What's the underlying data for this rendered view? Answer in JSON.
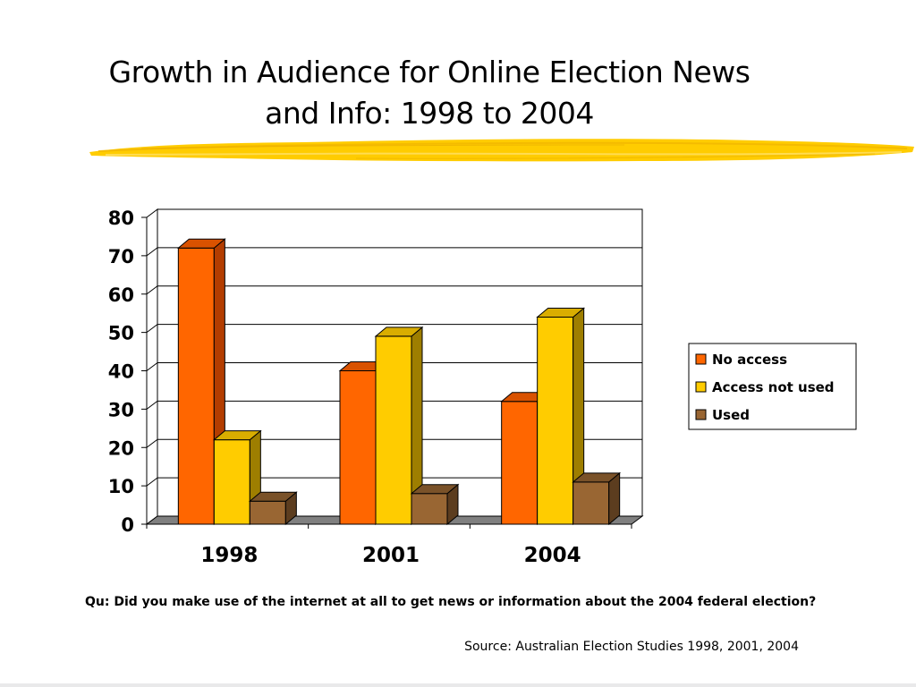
{
  "slide": {
    "title_line1": "Growth in Audience for Online Election News",
    "title_line2": "and Info: 1998 to 2004",
    "question": "Qu: Did you make use of the internet at all to get news or information about the 2004 federal election?",
    "source": "Source: Australian Election Studies 1998, 2001, 2004",
    "accent_color": "#ffcc00"
  },
  "chart_data": {
    "type": "bar",
    "title": "",
    "xlabel": "",
    "ylabel": "",
    "categories": [
      "1998",
      "2001",
      "2004"
    ],
    "series": [
      {
        "name": "No access",
        "values": [
          72,
          40,
          32
        ],
        "color": "#ff6600",
        "side": "#b33d00",
        "top": "#d95200"
      },
      {
        "name": "Access not used",
        "values": [
          22,
          49,
          54
        ],
        "color": "#ffcc00",
        "side": "#9e7e00",
        "top": "#d9ad00"
      },
      {
        "name": "Used",
        "values": [
          6,
          8,
          11
        ],
        "color": "#996633",
        "side": "#5c3d1f",
        "top": "#7a5229"
      }
    ],
    "ylim": [
      0,
      80
    ],
    "yticks": [
      "0",
      "10",
      "20",
      "30",
      "40",
      "50",
      "60",
      "70",
      "80"
    ],
    "grid": true,
    "legend_position": "right",
    "style": "3d-clustered"
  }
}
